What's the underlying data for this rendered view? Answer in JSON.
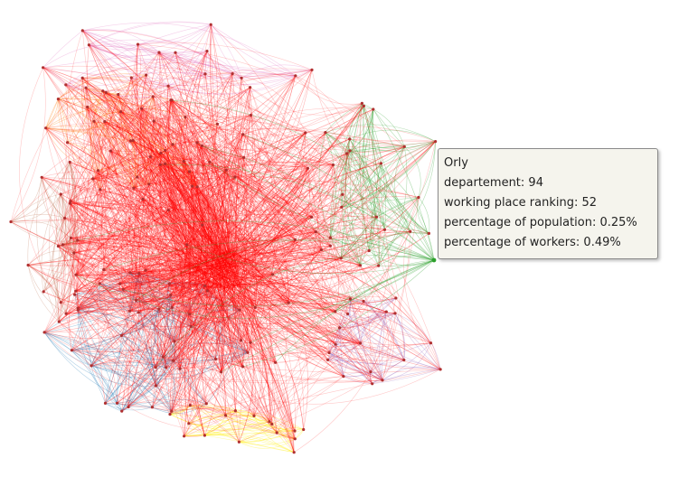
{
  "tooltip": {
    "name": "Orly",
    "departement": "departement: 94",
    "ranking": "working place ranking: 52",
    "population": "percentage of population: 0.25%",
    "workers": "percentage of workers: 0.49%"
  },
  "graph": {
    "community_colors": {
      "red": "#ff0000",
      "orange": "#ff7f0e",
      "green": "#2ca02c",
      "blue": "#1f77b4",
      "purple": "#9467bd",
      "yellow": "#ffee00",
      "pink": "#e377c2",
      "brown": "#c0785a"
    },
    "node_color": "#b03030"
  }
}
